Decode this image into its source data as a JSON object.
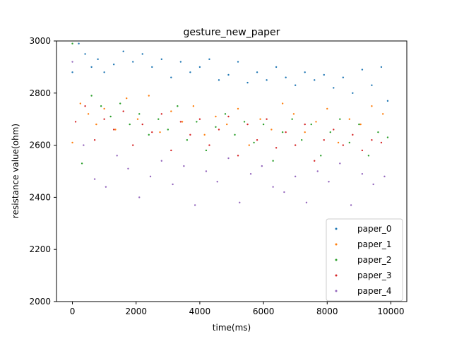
{
  "chart_data": {
    "type": "scatter",
    "title": "gesture_new_paper",
    "xlabel": "time(ms)",
    "ylabel": "resistance value(ohm)",
    "xlim": [
      -500,
      10500
    ],
    "ylim": [
      2000,
      3000
    ],
    "xticks": [
      0,
      2000,
      4000,
      6000,
      8000,
      10000
    ],
    "yticks": [
      2000,
      2200,
      2400,
      2600,
      2800,
      3000
    ],
    "grid": false,
    "legend_position": "lower right",
    "series": [
      {
        "name": "paper_0",
        "color": "#1f77b4",
        "x": [
          0,
          200,
          400,
          600,
          800,
          1000,
          1300,
          1600,
          1900,
          2200,
          2500,
          2800,
          3100,
          3400,
          3700,
          4000,
          4300,
          4600,
          4900,
          5200,
          5500,
          5800,
          6100,
          6400,
          6700,
          7000,
          7300,
          7600,
          7900,
          8200,
          8500,
          8800,
          9100,
          9400,
          9700,
          9900
        ],
        "y": [
          2880,
          2990,
          2950,
          2900,
          2930,
          2880,
          2910,
          2960,
          2920,
          2950,
          2900,
          2930,
          2860,
          2920,
          2880,
          2900,
          2930,
          2850,
          2870,
          2920,
          2840,
          2880,
          2850,
          2900,
          2860,
          2830,
          2880,
          2850,
          2870,
          2820,
          2860,
          2800,
          2890,
          2830,
          2900,
          2770
        ]
      },
      {
        "name": "paper_1",
        "color": "#ff7f0e",
        "x": [
          0,
          250,
          500,
          750,
          1000,
          1350,
          1700,
          2050,
          2400,
          2750,
          3100,
          3450,
          3800,
          4150,
          4500,
          4850,
          5200,
          5550,
          5900,
          6250,
          6600,
          6950,
          7300,
          7650,
          8000,
          8350,
          8700,
          9050,
          9400,
          9750
        ],
        "y": [
          2610,
          2760,
          2720,
          2680,
          2740,
          2660,
          2780,
          2700,
          2790,
          2650,
          2730,
          2690,
          2750,
          2640,
          2710,
          2680,
          2740,
          2600,
          2700,
          2660,
          2760,
          2720,
          2650,
          2690,
          2740,
          2610,
          2700,
          2680,
          2750,
          2720
        ]
      },
      {
        "name": "paper_2",
        "color": "#2ca02c",
        "x": [
          0,
          300,
          600,
          900,
          1200,
          1500,
          1800,
          2100,
          2400,
          2700,
          3000,
          3300,
          3600,
          3900,
          4200,
          4500,
          4800,
          5100,
          5400,
          5700,
          6000,
          6300,
          6600,
          6900,
          7200,
          7500,
          7800,
          8100,
          8400,
          8700,
          9000,
          9300,
          9600,
          9900
        ],
        "y": [
          2990,
          2530,
          2790,
          2750,
          2710,
          2760,
          2680,
          2720,
          2640,
          2700,
          2660,
          2750,
          2620,
          2690,
          2580,
          2670,
          2720,
          2640,
          2690,
          2610,
          2680,
          2540,
          2650,
          2700,
          2620,
          2680,
          2560,
          2650,
          2700,
          2610,
          2680,
          2560,
          2650,
          2630
        ]
      },
      {
        "name": "paper_3",
        "color": "#d62728",
        "x": [
          100,
          400,
          700,
          1000,
          1300,
          1600,
          1900,
          2200,
          2500,
          2800,
          3100,
          3400,
          3700,
          4000,
          4300,
          4600,
          4900,
          5200,
          5500,
          5800,
          6100,
          6400,
          6700,
          7000,
          7300,
          7600,
          7900,
          8200,
          8500,
          8800,
          9100,
          9400,
          9700
        ],
        "y": [
          2690,
          2750,
          2620,
          2700,
          2660,
          2730,
          2600,
          2680,
          2650,
          2720,
          2580,
          2690,
          2640,
          2700,
          2600,
          2660,
          2710,
          2560,
          2680,
          2620,
          2700,
          2590,
          2650,
          2600,
          2680,
          2540,
          2620,
          2660,
          2600,
          2640,
          2580,
          2620,
          2610
        ]
      },
      {
        "name": "paper_4",
        "color": "#9467bd",
        "x": [
          0,
          350,
          700,
          1050,
          1400,
          1750,
          2100,
          2450,
          2800,
          3150,
          3500,
          3850,
          4200,
          4550,
          4900,
          5250,
          5600,
          5950,
          6300,
          6650,
          7000,
          7350,
          7700,
          8050,
          8400,
          8750,
          9100,
          9450,
          9800
        ],
        "y": [
          2920,
          2600,
          2470,
          2440,
          2560,
          2510,
          2400,
          2480,
          2540,
          2450,
          2520,
          2370,
          2500,
          2460,
          2550,
          2380,
          2490,
          2520,
          2440,
          2420,
          2480,
          2380,
          2500,
          2460,
          2530,
          2370,
          2490,
          2450,
          2480
        ]
      }
    ]
  }
}
